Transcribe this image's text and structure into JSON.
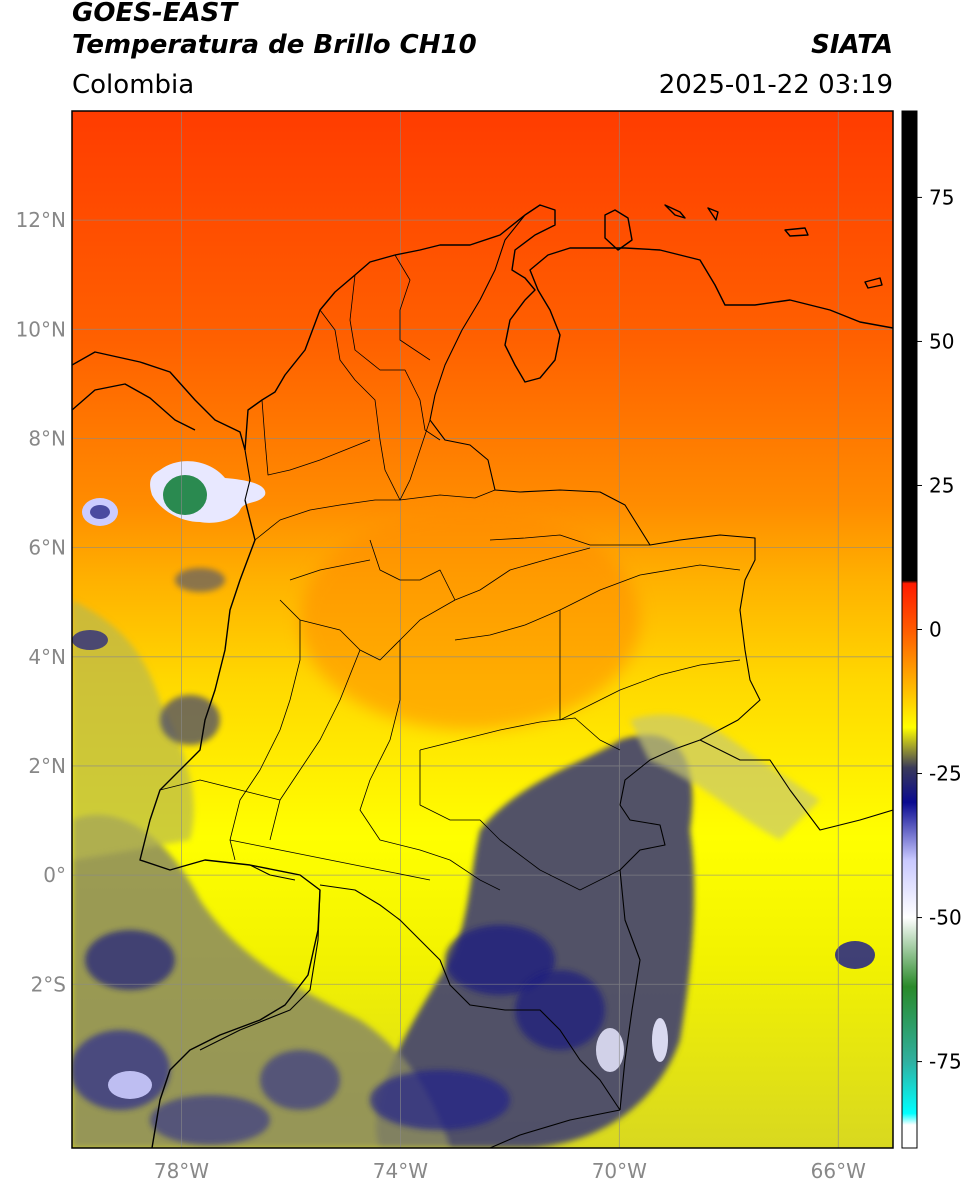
{
  "header": {
    "satellite": "GOES-EAST",
    "product": "Temperatura de Brillo CH10",
    "brand": "SIATA",
    "region": "Colombia",
    "timestamp": "2025-01-22 03:19"
  },
  "map": {
    "lon_range": [
      -80,
      -65
    ],
    "lat_range": [
      -5,
      14
    ],
    "lat_ticks": [
      {
        "value": 12,
        "label": "12°N"
      },
      {
        "value": 10,
        "label": "10°N"
      },
      {
        "value": 8,
        "label": "8°N"
      },
      {
        "value": 6,
        "label": "6°N"
      },
      {
        "value": 4,
        "label": "4°N"
      },
      {
        "value": 2,
        "label": "2°N"
      },
      {
        "value": 0,
        "label": "0°"
      },
      {
        "value": -2,
        "label": "2°S"
      }
    ],
    "lon_ticks": [
      {
        "value": -78,
        "label": "78°W"
      },
      {
        "value": -74,
        "label": "74°W"
      },
      {
        "value": -70,
        "label": "70°W"
      },
      {
        "value": -66,
        "label": "66°W"
      }
    ],
    "grid": true
  },
  "colorbar": {
    "range": [
      -90,
      90
    ],
    "ticks": [
      {
        "value": 75,
        "label": "75"
      },
      {
        "value": 50,
        "label": "50"
      },
      {
        "value": 25,
        "label": "25"
      },
      {
        "value": 0,
        "label": "0"
      },
      {
        "value": -25,
        "label": "-25"
      },
      {
        "value": -50,
        "label": "-50"
      },
      {
        "value": -75,
        "label": "-75"
      }
    ],
    "stops": [
      {
        "value": 90,
        "color": "#000000"
      },
      {
        "value": 8.5,
        "color": "#000000"
      },
      {
        "value": 8,
        "color": "#ff1a00"
      },
      {
        "value": 0,
        "color": "#ff5a00"
      },
      {
        "value": -10,
        "color": "#ffb800"
      },
      {
        "value": -17,
        "color": "#ffff00"
      },
      {
        "value": -24,
        "color": "#3a3a5a"
      },
      {
        "value": -30,
        "color": "#0a0a90"
      },
      {
        "value": -40,
        "color": "#c8c8ff"
      },
      {
        "value": -50,
        "color": "#ffffff"
      },
      {
        "value": -62,
        "color": "#2a8a2a"
      },
      {
        "value": -75,
        "color": "#30b0a0"
      },
      {
        "value": -84,
        "color": "#00ffff"
      },
      {
        "value": -86,
        "color": "#ffffff"
      },
      {
        "value": -90,
        "color": "#ffffff"
      }
    ]
  }
}
